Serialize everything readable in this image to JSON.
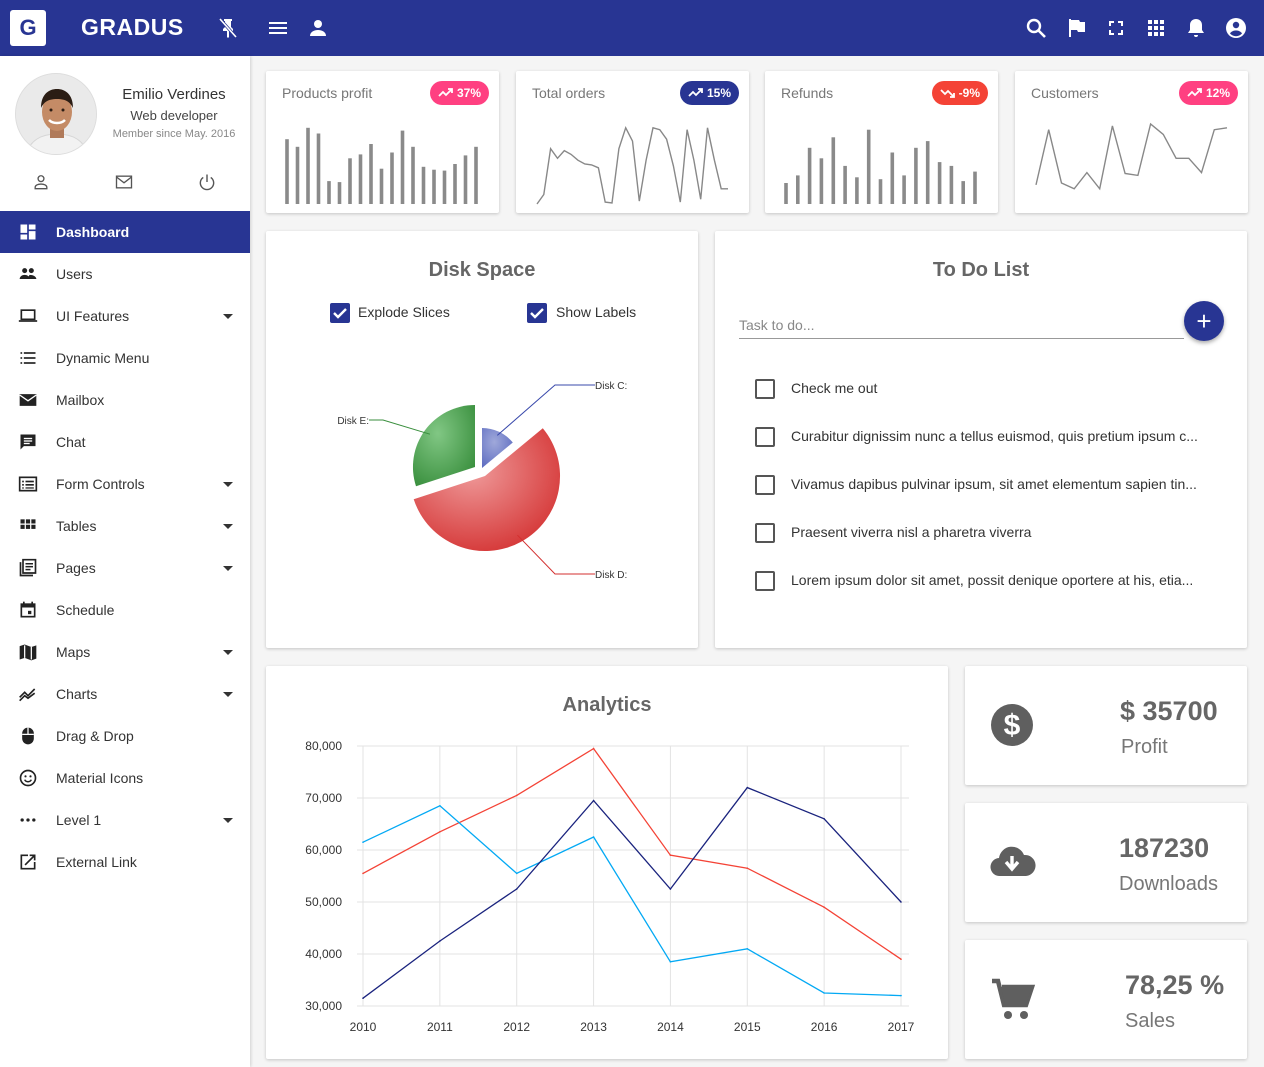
{
  "brand": {
    "logo_letter": "G",
    "name": "GRADUS"
  },
  "user": {
    "name": "Emilio Verdines",
    "role": "Web developer",
    "since": "Member since May. 2016"
  },
  "nav": [
    {
      "label": "Dashboard",
      "icon": "dashboard-icon",
      "active": true,
      "caret": false
    },
    {
      "label": "Users",
      "icon": "people-icon",
      "caret": false
    },
    {
      "label": "UI Features",
      "icon": "laptop-icon",
      "caret": true
    },
    {
      "label": "Dynamic Menu",
      "icon": "list-icon",
      "caret": false
    },
    {
      "label": "Mailbox",
      "icon": "mail-icon",
      "caret": false
    },
    {
      "label": "Chat",
      "icon": "chat-icon",
      "caret": false
    },
    {
      "label": "Form Controls",
      "icon": "form-icon",
      "caret": true
    },
    {
      "label": "Tables",
      "icon": "grid-icon",
      "caret": true
    },
    {
      "label": "Pages",
      "icon": "pages-icon",
      "caret": true
    },
    {
      "label": "Schedule",
      "icon": "calendar-icon",
      "caret": false
    },
    {
      "label": "Maps",
      "icon": "map-icon",
      "caret": true
    },
    {
      "label": "Charts",
      "icon": "chart-icon",
      "caret": true
    },
    {
      "label": "Drag & Drop",
      "icon": "mouse-icon",
      "caret": false
    },
    {
      "label": "Material Icons",
      "icon": "smiley-icon",
      "caret": false
    },
    {
      "label": "Level 1",
      "icon": "more-horiz-icon",
      "caret": true
    },
    {
      "label": "External Link",
      "icon": "open-in-new-icon",
      "caret": false
    }
  ],
  "minis": [
    {
      "title": "Products profit",
      "badge": "37%",
      "badge_color": "#ff4081",
      "trend": "up",
      "kind": "bars",
      "values": [
        68,
        60,
        80,
        74,
        24,
        23,
        48,
        52,
        63,
        37,
        54,
        77,
        60,
        39,
        36,
        35,
        42,
        51,
        60
      ]
    },
    {
      "title": "Total orders",
      "badge": "15%",
      "badge_color": "#283593",
      "trend": "up",
      "kind": "line",
      "values": [
        0,
        10,
        58,
        48,
        56,
        52,
        46,
        42,
        41,
        38,
        2,
        1,
        58,
        80,
        66,
        3,
        46,
        80,
        78,
        68,
        40,
        2,
        78,
        46,
        5,
        80,
        46,
        16,
        16
      ]
    },
    {
      "title": "Refunds",
      "badge": "-9%",
      "badge_color": "#f44336",
      "trend": "down",
      "kind": "bars",
      "values": [
        22,
        30,
        59,
        48,
        70,
        40,
        28,
        78,
        26,
        54,
        30,
        59,
        66,
        44,
        40,
        24,
        34
      ]
    },
    {
      "title": "Customers",
      "badge": "12%",
      "badge_color": "#ff4081",
      "trend": "up",
      "kind": "line",
      "values": [
        20,
        78,
        22,
        16,
        33,
        16,
        82,
        32,
        30,
        84,
        73,
        48,
        48,
        33,
        78,
        80
      ]
    }
  ],
  "disk": {
    "title": "Disk Space",
    "explode_label": "Explode Slices",
    "labels_label": "Show Labels",
    "slices": [
      {
        "name": "Disk C:",
        "value": 14,
        "color": "#7986cb"
      },
      {
        "name": "Disk D:",
        "value": 56,
        "color": "#e57373"
      },
      {
        "name": "Disk E:",
        "value": 30,
        "color": "#66bb6a"
      }
    ]
  },
  "todo": {
    "title": "To Do List",
    "placeholder": "Task to do...",
    "add_glyph": "+",
    "items": [
      "Check me out",
      "Curabitur dignissim nunc a tellus euismod, quis pretium ipsum c...",
      "Vivamus dapibus pulvinar ipsum, sit amet elementum sapien tin...",
      "Praesent viverra nisl a pharetra viverra",
      "Lorem ipsum dolor sit amet, possit denique oportere at his, etia..."
    ]
  },
  "analytics": {
    "title": "Analytics"
  },
  "chart_data": {
    "type": "line",
    "title": "Analytics",
    "x": [
      "2010",
      "2011",
      "2012",
      "2013",
      "2014",
      "2015",
      "2016",
      "2017"
    ],
    "ylim": [
      30000,
      80000
    ],
    "yticks": [
      "30,000",
      "40,000",
      "50,000",
      "60,000",
      "70,000",
      "80,000"
    ],
    "grid": true,
    "series": [
      {
        "color": "#f44336",
        "values": [
          55500,
          63500,
          70500,
          79500,
          59000,
          56500,
          49000,
          39000
        ]
      },
      {
        "color": "#03a9f4",
        "values": [
          61500,
          68500,
          55500,
          62500,
          38500,
          41000,
          32500,
          32000
        ]
      },
      {
        "color": "#1a237e",
        "values": [
          31500,
          42500,
          52500,
          69500,
          52500,
          72000,
          66000,
          50000
        ]
      }
    ]
  },
  "stats": [
    {
      "value": "$ 35700",
      "label": "Profit",
      "icon": "dollar-icon"
    },
    {
      "value": "187230",
      "label": "Downloads",
      "icon": "cloud-download-icon"
    },
    {
      "value": "78,25 %",
      "label": "Sales",
      "icon": "cart-icon"
    }
  ]
}
